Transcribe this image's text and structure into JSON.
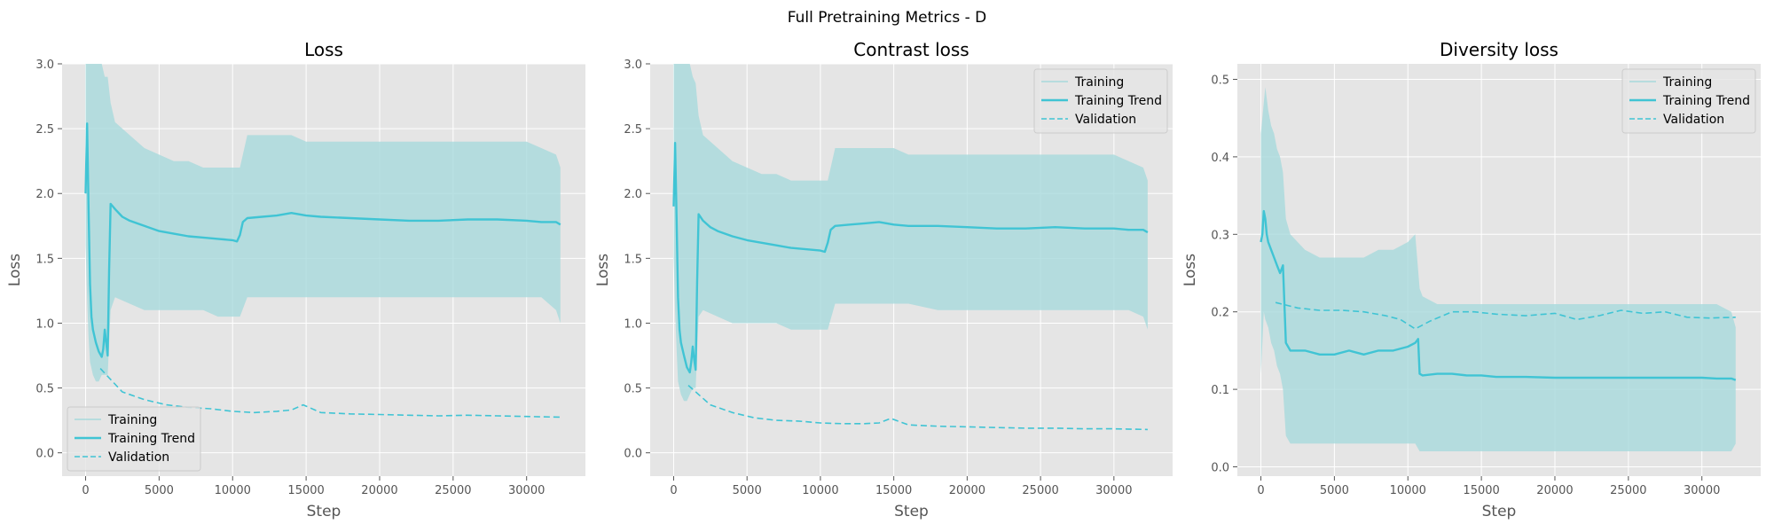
{
  "figure": {
    "suptitle": "Full Pretraining Metrics - D"
  },
  "colors": {
    "training": "#a8dadc",
    "trend": "#40c4d4",
    "validation": "#40c4d4",
    "axes_bg": "#e5e5e5",
    "grid": "#ffffff"
  },
  "chart_data": [
    {
      "type": "line",
      "title": "Loss",
      "xlabel": "Step",
      "ylabel": "Loss",
      "xlim": [
        -1600,
        34000
      ],
      "ylim": [
        -0.18,
        3.0
      ],
      "xticks": [
        0,
        5000,
        10000,
        15000,
        20000,
        25000,
        30000
      ],
      "yticks": [
        0.0,
        0.5,
        1.0,
        1.5,
        2.0,
        2.5,
        3.0
      ],
      "legend": {
        "placement": "lower-left",
        "entries": [
          "Training",
          "Training Trend",
          "Validation"
        ]
      },
      "series": [
        {
          "name": "Training",
          "style": "band",
          "x": [
            0,
            100,
            200,
            300,
            500,
            700,
            900,
            1100,
            1300,
            1500,
            1700,
            2000,
            3000,
            4000,
            5000,
            6000,
            7000,
            8000,
            9000,
            10000,
            10500,
            11000,
            12000,
            13000,
            14000,
            15000,
            16000,
            18000,
            20000,
            22000,
            24000,
            26000,
            28000,
            30000,
            31000,
            32000,
            32300
          ],
          "low": [
            1.6,
            1.2,
            0.9,
            0.7,
            0.6,
            0.55,
            0.55,
            0.6,
            0.6,
            0.6,
            1.1,
            1.2,
            1.15,
            1.1,
            1.1,
            1.1,
            1.1,
            1.1,
            1.05,
            1.05,
            1.05,
            1.2,
            1.2,
            1.2,
            1.2,
            1.2,
            1.2,
            1.2,
            1.2,
            1.2,
            1.2,
            1.2,
            1.2,
            1.2,
            1.2,
            1.1,
            1.0
          ],
          "high": [
            3.0,
            3.0,
            3.0,
            3.0,
            3.0,
            3.0,
            3.0,
            3.0,
            2.9,
            2.9,
            2.7,
            2.55,
            2.45,
            2.35,
            2.3,
            2.25,
            2.25,
            2.2,
            2.2,
            2.2,
            2.2,
            2.45,
            2.45,
            2.45,
            2.45,
            2.4,
            2.4,
            2.4,
            2.4,
            2.4,
            2.4,
            2.4,
            2.4,
            2.4,
            2.35,
            2.3,
            2.2
          ]
        },
        {
          "name": "Training Trend",
          "style": "solid",
          "x": [
            0,
            100,
            200,
            300,
            400,
            500,
            700,
            900,
            1100,
            1200,
            1300,
            1400,
            1500,
            1600,
            1700,
            2000,
            2500,
            3000,
            4000,
            5000,
            6000,
            7000,
            8000,
            9000,
            10000,
            10300,
            10500,
            10700,
            11000,
            12000,
            13000,
            14000,
            15000,
            16000,
            18000,
            20000,
            22000,
            24000,
            26000,
            28000,
            30000,
            31000,
            32000,
            32300
          ],
          "y": [
            2.0,
            2.54,
            1.9,
            1.3,
            1.05,
            0.95,
            0.85,
            0.78,
            0.74,
            0.8,
            0.95,
            0.85,
            0.75,
            1.4,
            1.92,
            1.88,
            1.82,
            1.79,
            1.75,
            1.71,
            1.69,
            1.67,
            1.66,
            1.65,
            1.64,
            1.63,
            1.68,
            1.78,
            1.81,
            1.82,
            1.83,
            1.85,
            1.83,
            1.82,
            1.81,
            1.8,
            1.79,
            1.79,
            1.8,
            1.8,
            1.79,
            1.78,
            1.78,
            1.76
          ]
        },
        {
          "name": "Validation",
          "style": "dashed",
          "x": [
            1000,
            2500,
            4000,
            5500,
            7000,
            8500,
            10000,
            11500,
            13000,
            14000,
            14800,
            16000,
            18000,
            20000,
            22000,
            24000,
            26000,
            28000,
            30000,
            32300
          ],
          "y": [
            0.65,
            0.47,
            0.41,
            0.37,
            0.35,
            0.34,
            0.32,
            0.31,
            0.32,
            0.33,
            0.37,
            0.31,
            0.3,
            0.295,
            0.29,
            0.285,
            0.29,
            0.285,
            0.28,
            0.275
          ]
        }
      ]
    },
    {
      "type": "line",
      "title": "Contrast loss",
      "xlabel": "Step",
      "ylabel": "Loss",
      "xlim": [
        -1600,
        34000
      ],
      "ylim": [
        -0.18,
        3.0
      ],
      "xticks": [
        0,
        5000,
        10000,
        15000,
        20000,
        25000,
        30000
      ],
      "yticks": [
        0.0,
        0.5,
        1.0,
        1.5,
        2.0,
        2.5,
        3.0
      ],
      "legend": {
        "placement": "upper-right",
        "entries": [
          "Training",
          "Training Trend",
          "Validation"
        ]
      },
      "series": [
        {
          "name": "Training",
          "style": "band",
          "x": [
            0,
            100,
            200,
            300,
            500,
            700,
            900,
            1100,
            1300,
            1500,
            1700,
            2000,
            3000,
            4000,
            5000,
            6000,
            7000,
            8000,
            9000,
            10000,
            10500,
            11000,
            12000,
            13000,
            14000,
            15000,
            16000,
            18000,
            20000,
            22000,
            24000,
            26000,
            28000,
            30000,
            31000,
            32000,
            32300
          ],
          "low": [
            1.5,
            1.1,
            0.8,
            0.55,
            0.45,
            0.4,
            0.4,
            0.45,
            0.5,
            0.5,
            1.05,
            1.1,
            1.05,
            1.0,
            1.0,
            1.0,
            1.0,
            0.95,
            0.95,
            0.95,
            0.95,
            1.15,
            1.15,
            1.15,
            1.15,
            1.15,
            1.15,
            1.1,
            1.1,
            1.1,
            1.1,
            1.1,
            1.1,
            1.1,
            1.1,
            1.05,
            0.95
          ],
          "high": [
            3.0,
            3.0,
            3.0,
            3.0,
            3.0,
            3.0,
            3.0,
            3.0,
            2.9,
            2.85,
            2.6,
            2.45,
            2.35,
            2.25,
            2.2,
            2.15,
            2.15,
            2.1,
            2.1,
            2.1,
            2.1,
            2.35,
            2.35,
            2.35,
            2.35,
            2.35,
            2.3,
            2.3,
            2.3,
            2.3,
            2.3,
            2.3,
            2.3,
            2.3,
            2.25,
            2.2,
            2.1
          ]
        },
        {
          "name": "Training Trend",
          "style": "solid",
          "x": [
            0,
            100,
            200,
            300,
            400,
            500,
            700,
            900,
            1100,
            1200,
            1300,
            1400,
            1500,
            1600,
            1700,
            2000,
            2500,
            3000,
            4000,
            5000,
            6000,
            7000,
            8000,
            9000,
            10000,
            10300,
            10500,
            10700,
            11000,
            12000,
            13000,
            14000,
            15000,
            16000,
            18000,
            20000,
            22000,
            24000,
            26000,
            28000,
            30000,
            31000,
            32000,
            32300
          ],
          "y": [
            1.9,
            2.39,
            1.8,
            1.2,
            0.95,
            0.85,
            0.75,
            0.66,
            0.62,
            0.7,
            0.82,
            0.72,
            0.64,
            1.3,
            1.84,
            1.79,
            1.74,
            1.71,
            1.67,
            1.64,
            1.62,
            1.6,
            1.58,
            1.57,
            1.56,
            1.55,
            1.62,
            1.72,
            1.75,
            1.76,
            1.77,
            1.78,
            1.76,
            1.75,
            1.75,
            1.74,
            1.73,
            1.73,
            1.74,
            1.73,
            1.73,
            1.72,
            1.72,
            1.7
          ]
        },
        {
          "name": "Validation",
          "style": "dashed",
          "x": [
            1000,
            2500,
            4000,
            5500,
            7000,
            8500,
            10000,
            11500,
            13000,
            14000,
            14800,
            16000,
            18000,
            20000,
            22000,
            24000,
            26000,
            28000,
            30000,
            32300
          ],
          "y": [
            0.52,
            0.37,
            0.31,
            0.27,
            0.25,
            0.245,
            0.23,
            0.225,
            0.225,
            0.23,
            0.265,
            0.215,
            0.205,
            0.2,
            0.195,
            0.19,
            0.19,
            0.185,
            0.185,
            0.18
          ]
        }
      ]
    },
    {
      "type": "line",
      "title": "Diversity loss",
      "xlabel": "Step",
      "ylabel": "Loss",
      "xlim": [
        -1600,
        34000
      ],
      "ylim": [
        -0.012,
        0.52
      ],
      "xticks": [
        0,
        5000,
        10000,
        15000,
        20000,
        25000,
        30000
      ],
      "yticks": [
        0.0,
        0.1,
        0.2,
        0.3,
        0.4,
        0.5
      ],
      "legend": {
        "placement": "upper-right",
        "entries": [
          "Training",
          "Training Trend",
          "Validation"
        ]
      },
      "series": [
        {
          "name": "Training",
          "style": "band",
          "x": [
            0,
            100,
            200,
            300,
            500,
            700,
            900,
            1100,
            1300,
            1500,
            1700,
            2000,
            3000,
            4000,
            5000,
            6000,
            7000,
            8000,
            9000,
            10000,
            10500,
            10800,
            11000,
            12000,
            13000,
            14000,
            15000,
            16000,
            18000,
            20000,
            22000,
            24000,
            26000,
            28000,
            30000,
            31000,
            32000,
            32300
          ],
          "low": [
            0.12,
            0.16,
            0.2,
            0.19,
            0.18,
            0.16,
            0.15,
            0.13,
            0.12,
            0.1,
            0.04,
            0.03,
            0.03,
            0.03,
            0.03,
            0.03,
            0.03,
            0.03,
            0.03,
            0.03,
            0.03,
            0.02,
            0.02,
            0.02,
            0.02,
            0.02,
            0.02,
            0.02,
            0.02,
            0.02,
            0.02,
            0.02,
            0.02,
            0.02,
            0.02,
            0.02,
            0.02,
            0.03
          ],
          "high": [
            0.43,
            0.45,
            0.47,
            0.49,
            0.46,
            0.44,
            0.43,
            0.41,
            0.4,
            0.38,
            0.32,
            0.3,
            0.28,
            0.27,
            0.27,
            0.27,
            0.27,
            0.28,
            0.28,
            0.29,
            0.3,
            0.23,
            0.22,
            0.21,
            0.21,
            0.21,
            0.21,
            0.21,
            0.21,
            0.21,
            0.21,
            0.21,
            0.21,
            0.21,
            0.21,
            0.21,
            0.2,
            0.18
          ]
        },
        {
          "name": "Training Trend",
          "style": "solid",
          "x": [
            0,
            100,
            200,
            300,
            400,
            500,
            700,
            900,
            1100,
            1300,
            1500,
            1700,
            2000,
            3000,
            4000,
            5000,
            6000,
            7000,
            8000,
            9000,
            10000,
            10500,
            10700,
            10800,
            11000,
            12000,
            13000,
            14000,
            15000,
            16000,
            18000,
            20000,
            22000,
            24000,
            26000,
            28000,
            30000,
            31000,
            32000,
            32300
          ],
          "y": [
            0.29,
            0.3,
            0.33,
            0.32,
            0.3,
            0.29,
            0.28,
            0.27,
            0.26,
            0.25,
            0.26,
            0.16,
            0.15,
            0.15,
            0.145,
            0.145,
            0.15,
            0.145,
            0.15,
            0.15,
            0.155,
            0.16,
            0.165,
            0.12,
            0.118,
            0.12,
            0.12,
            0.118,
            0.118,
            0.116,
            0.116,
            0.115,
            0.115,
            0.115,
            0.115,
            0.115,
            0.115,
            0.114,
            0.114,
            0.112
          ]
        },
        {
          "name": "Validation",
          "style": "dashed",
          "x": [
            1000,
            2500,
            4000,
            5500,
            7000,
            8500,
            9500,
            10500,
            11500,
            13000,
            14500,
            16000,
            18000,
            20000,
            21500,
            23000,
            24500,
            26000,
            27500,
            29000,
            30500,
            32300
          ],
          "y": [
            0.212,
            0.205,
            0.202,
            0.202,
            0.2,
            0.195,
            0.19,
            0.178,
            0.188,
            0.2,
            0.2,
            0.197,
            0.195,
            0.198,
            0.19,
            0.195,
            0.202,
            0.198,
            0.2,
            0.193,
            0.192,
            0.193
          ]
        }
      ]
    }
  ]
}
